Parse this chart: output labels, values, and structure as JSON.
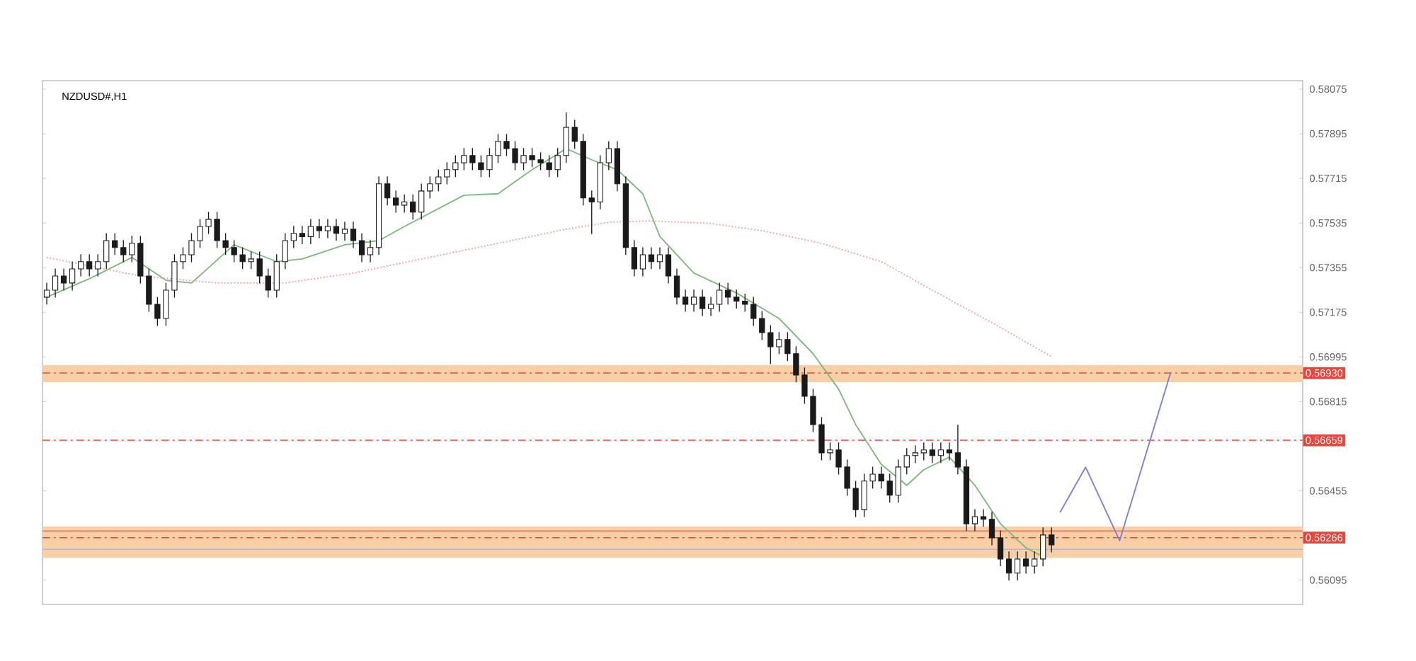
{
  "chart_data": {
    "type": "candlestick",
    "title": "NZDUSD#,H1",
    "categories": [
      null,
      null,
      null,
      null,
      null,
      null,
      null,
      null,
      null,
      null,
      null,
      null,
      null,
      null,
      null,
      null,
      null,
      null,
      null,
      null,
      null,
      null,
      null,
      null,
      null,
      null,
      null,
      null,
      null,
      null,
      null,
      null,
      null,
      null,
      null,
      null,
      null,
      null,
      null,
      null,
      null,
      null,
      null,
      null,
      null,
      null,
      null,
      null,
      null,
      null,
      null,
      null,
      null,
      null,
      null,
      null,
      null,
      null,
      null,
      null,
      null,
      null,
      null,
      null,
      null,
      null,
      null,
      null,
      null,
      null,
      null,
      null,
      null,
      null,
      null,
      null,
      null,
      null,
      null,
      null,
      null,
      null,
      null,
      null,
      null,
      null,
      null,
      null,
      null,
      null,
      null,
      null,
      null,
      null,
      null,
      null,
      null,
      null,
      null,
      null,
      null,
      null,
      null,
      null,
      null,
      null,
      null,
      null,
      null,
      null,
      null,
      null,
      null,
      null,
      null,
      null,
      null,
      null,
      null,
      null,
      null,
      null,
      null,
      null,
      null,
      null,
      null,
      null,
      null,
      null,
      null,
      null,
      null,
      null,
      null,
      null,
      null,
      null,
      null,
      null,
      null,
      null,
      null,
      null,
      null,
      null,
      null,
      null
    ],
    "ohlc": [
      [
        0.57236,
        0.57294,
        0.57206,
        0.57264
      ],
      [
        0.57264,
        0.57351,
        0.57234,
        0.57321
      ],
      [
        0.57321,
        0.57351,
        0.57263,
        0.57293
      ],
      [
        0.57293,
        0.5738,
        0.57263,
        0.5735
      ],
      [
        0.5735,
        0.57409,
        0.5732,
        0.57379
      ],
      [
        0.57379,
        0.57409,
        0.5732,
        0.5735
      ],
      [
        0.5735,
        0.57409,
        0.5732,
        0.57379
      ],
      [
        0.57379,
        0.57494,
        0.57349,
        0.57464
      ],
      [
        0.57464,
        0.57494,
        0.57406,
        0.57436
      ],
      [
        0.57436,
        0.57466,
        0.57377,
        0.57407
      ],
      [
        0.57407,
        0.57483,
        0.57377,
        0.57453
      ],
      [
        0.57453,
        0.57483,
        0.57291,
        0.57321
      ],
      [
        0.57321,
        0.57351,
        0.57177,
        0.57207
      ],
      [
        0.57207,
        0.57237,
        0.5712,
        0.5715
      ],
      [
        0.5715,
        0.57294,
        0.5712,
        0.57264
      ],
      [
        0.57264,
        0.57409,
        0.57234,
        0.57379
      ],
      [
        0.57379,
        0.57437,
        0.57349,
        0.57407
      ],
      [
        0.57407,
        0.57494,
        0.57377,
        0.57464
      ],
      [
        0.57464,
        0.57551,
        0.57434,
        0.57521
      ],
      [
        0.57521,
        0.5758,
        0.57491,
        0.5755
      ],
      [
        0.5755,
        0.5758,
        0.57434,
        0.57464
      ],
      [
        0.57464,
        0.57494,
        0.57406,
        0.57436
      ],
      [
        0.57436,
        0.57466,
        0.57377,
        0.57407
      ],
      [
        0.57407,
        0.57437,
        0.57349,
        0.57379
      ],
      [
        0.57379,
        0.5742,
        0.57349,
        0.5739
      ],
      [
        0.5739,
        0.5742,
        0.57291,
        0.57321
      ],
      [
        0.57321,
        0.57351,
        0.57234,
        0.57264
      ],
      [
        0.57264,
        0.57409,
        0.57234,
        0.57379
      ],
      [
        0.57379,
        0.57494,
        0.57349,
        0.57464
      ],
      [
        0.57464,
        0.57523,
        0.57434,
        0.57493
      ],
      [
        0.57493,
        0.57523,
        0.5745,
        0.5748
      ],
      [
        0.5748,
        0.57551,
        0.5745,
        0.57521
      ],
      [
        0.57521,
        0.57551,
        0.57474,
        0.57504
      ],
      [
        0.57504,
        0.57551,
        0.57474,
        0.57521
      ],
      [
        0.57521,
        0.57551,
        0.57463,
        0.57493
      ],
      [
        0.57493,
        0.5754,
        0.57463,
        0.5751
      ],
      [
        0.5751,
        0.5754,
        0.57434,
        0.57464
      ],
      [
        0.57464,
        0.57494,
        0.57377,
        0.57407
      ],
      [
        0.57407,
        0.57466,
        0.57377,
        0.57436
      ],
      [
        0.57436,
        0.57723,
        0.57406,
        0.57693
      ],
      [
        0.57693,
        0.57723,
        0.57606,
        0.57636
      ],
      [
        0.57636,
        0.57666,
        0.57577,
        0.57607
      ],
      [
        0.57607,
        0.5765,
        0.57577,
        0.5762
      ],
      [
        0.5762,
        0.5765,
        0.57549,
        0.57579
      ],
      [
        0.57579,
        0.57694,
        0.57549,
        0.57664
      ],
      [
        0.57664,
        0.57723,
        0.57634,
        0.57693
      ],
      [
        0.57693,
        0.57751,
        0.57663,
        0.57721
      ],
      [
        0.57721,
        0.5778,
        0.57691,
        0.5775
      ],
      [
        0.5775,
        0.57808,
        0.5772,
        0.57778
      ],
      [
        0.57778,
        0.57837,
        0.57748,
        0.57807
      ],
      [
        0.57807,
        0.57837,
        0.57748,
        0.57778
      ],
      [
        0.57778,
        0.57808,
        0.5772,
        0.5775
      ],
      [
        0.5775,
        0.57837,
        0.5772,
        0.57807
      ],
      [
        0.57807,
        0.57894,
        0.57777,
        0.57864
      ],
      [
        0.57864,
        0.57894,
        0.57805,
        0.57835
      ],
      [
        0.57835,
        0.57865,
        0.57748,
        0.57778
      ],
      [
        0.57778,
        0.57837,
        0.57748,
        0.57807
      ],
      [
        0.57807,
        0.57837,
        0.5776,
        0.5779
      ],
      [
        0.5779,
        0.5782,
        0.57748,
        0.57778
      ],
      [
        0.57778,
        0.57808,
        0.5772,
        0.5775
      ],
      [
        0.5775,
        0.57837,
        0.5772,
        0.57807
      ],
      [
        0.57807,
        0.57981,
        0.57777,
        0.57921
      ],
      [
        0.57921,
        0.57951,
        0.57834,
        0.57864
      ],
      [
        0.57864,
        0.57894,
        0.57606,
        0.57636
      ],
      [
        0.57636,
        0.57666,
        0.5749,
        0.5762
      ],
      [
        0.5762,
        0.57808,
        0.5759,
        0.57778
      ],
      [
        0.57778,
        0.57865,
        0.57748,
        0.57835
      ],
      [
        0.57835,
        0.57865,
        0.57663,
        0.57693
      ],
      [
        0.57693,
        0.57723,
        0.57406,
        0.57436
      ],
      [
        0.57436,
        0.57466,
        0.5732,
        0.5735
      ],
      [
        0.5735,
        0.57437,
        0.5732,
        0.57407
      ],
      [
        0.57407,
        0.57437,
        0.57349,
        0.57379
      ],
      [
        0.57379,
        0.57437,
        0.57349,
        0.57407
      ],
      [
        0.57407,
        0.57437,
        0.57291,
        0.57321
      ],
      [
        0.57321,
        0.57351,
        0.57206,
        0.57236
      ],
      [
        0.57236,
        0.57266,
        0.57177,
        0.57207
      ],
      [
        0.57207,
        0.57266,
        0.57177,
        0.57236
      ],
      [
        0.57236,
        0.57266,
        0.5716,
        0.5719
      ],
      [
        0.5719,
        0.57237,
        0.5716,
        0.57207
      ],
      [
        0.57207,
        0.57294,
        0.57177,
        0.57264
      ],
      [
        0.57264,
        0.57294,
        0.57206,
        0.57236
      ],
      [
        0.57236,
        0.57266,
        0.5719,
        0.5722
      ],
      [
        0.5722,
        0.5725,
        0.57177,
        0.57207
      ],
      [
        0.57207,
        0.57237,
        0.5712,
        0.5715
      ],
      [
        0.5715,
        0.5718,
        0.57063,
        0.57093
      ],
      [
        0.57093,
        0.57123,
        0.56966,
        0.57036
      ],
      [
        0.57036,
        0.57095,
        0.57006,
        0.57065
      ],
      [
        0.57065,
        0.57095,
        0.56978,
        0.57008
      ],
      [
        0.57008,
        0.57038,
        0.56892,
        0.56922
      ],
      [
        0.56922,
        0.56952,
        0.56806,
        0.56836
      ],
      [
        0.56836,
        0.56866,
        0.56692,
        0.56722
      ],
      [
        0.56722,
        0.56752,
        0.56578,
        0.56608
      ],
      [
        0.56608,
        0.5665,
        0.56578,
        0.5662
      ],
      [
        0.5662,
        0.5665,
        0.56521,
        0.56551
      ],
      [
        0.56551,
        0.56581,
        0.56435,
        0.56465
      ],
      [
        0.56465,
        0.56495,
        0.56349,
        0.56379
      ],
      [
        0.56379,
        0.56524,
        0.56349,
        0.56494
      ],
      [
        0.56494,
        0.56552,
        0.56464,
        0.56522
      ],
      [
        0.56522,
        0.56552,
        0.56464,
        0.56494
      ],
      [
        0.56494,
        0.56524,
        0.56407,
        0.56437
      ],
      [
        0.56437,
        0.56581,
        0.56407,
        0.56551
      ],
      [
        0.56551,
        0.56627,
        0.56521,
        0.56597
      ],
      [
        0.56597,
        0.56638,
        0.56567,
        0.56608
      ],
      [
        0.56608,
        0.5665,
        0.56578,
        0.5662
      ],
      [
        0.5662,
        0.5665,
        0.56567,
        0.56597
      ],
      [
        0.56597,
        0.5665,
        0.56567,
        0.5662
      ],
      [
        0.5662,
        0.5665,
        0.56578,
        0.56608
      ],
      [
        0.56608,
        0.56722,
        0.56521,
        0.56551
      ],
      [
        0.56551,
        0.56581,
        0.56292,
        0.56322
      ],
      [
        0.56322,
        0.56381,
        0.56292,
        0.56351
      ],
      [
        0.56351,
        0.56381,
        0.5631,
        0.5634
      ],
      [
        0.5634,
        0.5637,
        0.56235,
        0.56265
      ],
      [
        0.56265,
        0.56295,
        0.5615,
        0.5618
      ],
      [
        0.5618,
        0.5621,
        0.56093,
        0.56123
      ],
      [
        0.56123,
        0.5621,
        0.56093,
        0.5618
      ],
      [
        0.5618,
        0.5621,
        0.56121,
        0.56151
      ],
      [
        0.56151,
        0.5621,
        0.56121,
        0.5618
      ],
      [
        0.5618,
        0.56307,
        0.5615,
        0.56277
      ],
      [
        0.56277,
        0.56307,
        0.56207,
        0.56237
      ],
      null,
      null,
      null,
      null,
      null,
      null,
      null,
      null,
      null,
      null,
      null,
      null,
      null,
      null,
      null,
      null,
      null,
      null,
      null,
      null,
      null,
      null,
      null,
      null,
      null,
      null,
      null,
      null,
      null
    ],
    "color": "#1a1a1a",
    "series": [
      {
        "type": "line",
        "color": "#7fb77f",
        "line_style": "solid",
        "values": [
          0.57236,
          null,
          null,
          null,
          null,
          0.5731,
          null,
          null,
          null,
          null,
          0.57396,
          null,
          null,
          null,
          0.57304,
          null,
          null,
          0.57293,
          null,
          null,
          null,
          null,
          0.57447,
          null,
          null,
          null,
          null,
          0.57379,
          null,
          null,
          0.5739,
          null,
          null,
          null,
          null,
          0.57447,
          null,
          null,
          null,
          0.57464,
          null,
          null,
          0.57521,
          null,
          null,
          null,
          null,
          null,
          null,
          0.57647,
          null,
          null,
          null,
          0.57653,
          null,
          null,
          null,
          0.5775,
          null,
          null,
          null,
          0.57835,
          null,
          null,
          0.5779,
          null,
          null,
          0.5775,
          null,
          null,
          0.57653,
          null,
          0.57481,
          null,
          null,
          null,
          0.57333,
          null,
          null,
          null,
          null,
          0.57253,
          null,
          null,
          null,
          null,
          0.5715,
          null,
          null,
          null,
          0.57008,
          null,
          null,
          0.56865,
          null,
          0.56722,
          null,
          null,
          0.56562,
          null,
          null,
          0.56477,
          null,
          0.5654,
          null,
          null,
          0.56591,
          null,
          null,
          0.56477,
          null,
          null,
          0.56322,
          null,
          null,
          0.56225,
          null,
          0.5619,
          null,
          null,
          null,
          null,
          null,
          null,
          null,
          null,
          null,
          null,
          null,
          null,
          null,
          null,
          null,
          null,
          null,
          null,
          null,
          null,
          null,
          null,
          null,
          null,
          null,
          null,
          null,
          null,
          null,
          null
        ]
      },
      {
        "type": "line",
        "color": "#f0a0a0",
        "line_style": "dotted",
        "values": [
          0.57396,
          null,
          null,
          null,
          null,
          null,
          null,
          null,
          null,
          null,
          null,
          0.57321,
          null,
          null,
          null,
          null,
          null,
          null,
          null,
          null,
          0.57293,
          null,
          null,
          null,
          null,
          null,
          null,
          null,
          0.57293,
          null,
          null,
          null,
          null,
          null,
          null,
          null,
          0.57333,
          null,
          null,
          null,
          null,
          null,
          null,
          null,
          0.5739,
          null,
          null,
          null,
          null,
          null,
          null,
          null,
          null,
          0.57453,
          null,
          null,
          null,
          null,
          null,
          null,
          null,
          0.5751,
          null,
          null,
          null,
          null,
          0.57538,
          null,
          null,
          null,
          null,
          0.57544,
          null,
          null,
          null,
          null,
          null,
          null,
          0.57533,
          null,
          null,
          null,
          null,
          null,
          0.57504,
          null,
          null,
          null,
          null,
          null,
          null,
          0.57453,
          null,
          null,
          null,
          null,
          null,
          null,
          0.57379,
          null,
          null,
          null,
          null,
          null,
          0.57264,
          null,
          null,
          null,
          null,
          null,
          null,
          0.57133,
          null,
          null,
          null,
          null,
          null,
          null,
          0.56996,
          null,
          null,
          null,
          null,
          null,
          null,
          null,
          null,
          null,
          null,
          null,
          null,
          null,
          null,
          null,
          null,
          null,
          null,
          null,
          null,
          null,
          null,
          null,
          null,
          null,
          null,
          null,
          null,
          null
        ]
      },
      {
        "type": "line",
        "color": "#7b7fd8",
        "line_style": "solid",
        "values": [
          null,
          null,
          null,
          null,
          null,
          null,
          null,
          null,
          null,
          null,
          null,
          null,
          null,
          null,
          null,
          null,
          null,
          null,
          null,
          null,
          null,
          null,
          null,
          null,
          null,
          null,
          null,
          null,
          null,
          null,
          null,
          null,
          null,
          null,
          null,
          null,
          null,
          null,
          null,
          null,
          null,
          null,
          null,
          null,
          null,
          null,
          null,
          null,
          null,
          null,
          null,
          null,
          null,
          null,
          null,
          null,
          null,
          null,
          null,
          null,
          null,
          null,
          null,
          null,
          null,
          null,
          null,
          null,
          null,
          null,
          null,
          null,
          null,
          null,
          null,
          null,
          null,
          null,
          null,
          null,
          null,
          null,
          null,
          null,
          null,
          null,
          null,
          null,
          null,
          null,
          null,
          null,
          null,
          null,
          null,
          null,
          null,
          null,
          null,
          null,
          null,
          null,
          null,
          null,
          null,
          null,
          null,
          null,
          null,
          null,
          null,
          null,
          null,
          null,
          null,
          null,
          null,
          null,
          null,
          0.56368,
          null,
          null,
          0.5655,
          null,
          null,
          null,
          0.56254,
          null,
          null,
          null,
          null,
          null,
          0.56933,
          null,
          null,
          null,
          null,
          null,
          null,
          null,
          null,
          null,
          null,
          null,
          null,
          null,
          null,
          null
        ]
      }
    ],
    "ylim": [
      0.55997,
      0.58109
    ],
    "yticks": [
      0.58075,
      0.57895,
      0.57715,
      0.57535,
      0.57355,
      0.57175,
      0.56995,
      0.56815,
      0.56455,
      0.56095
    ],
    "bands": [
      {
        "axis": "y",
        "from": 0.56893,
        "to": 0.56962,
        "color": "#f9cfa6"
      },
      {
        "axis": "y",
        "from": 0.56185,
        "to": 0.56311,
        "color": "#f9cfa6"
      }
    ],
    "ref_lines": [
      {
        "axis": "y",
        "value": 0.5693,
        "label": "0.56930",
        "color": "#e8453c",
        "line_style": "dashed"
      },
      {
        "axis": "y",
        "value": 0.56659,
        "label": "0.56659",
        "color": "#e8453c",
        "line_style": "dashed"
      },
      {
        "axis": "y",
        "value": 0.56266,
        "label": "0.56266",
        "color": "#e8453c",
        "line_style": "dashed"
      },
      {
        "axis": "y",
        "value": 0.56293,
        "color": "#f07070",
        "line_style": "solid"
      },
      {
        "axis": "y",
        "value": 0.56219,
        "color": "#b8b8c8",
        "line_style": "solid"
      }
    ],
    "grid": false
  }
}
